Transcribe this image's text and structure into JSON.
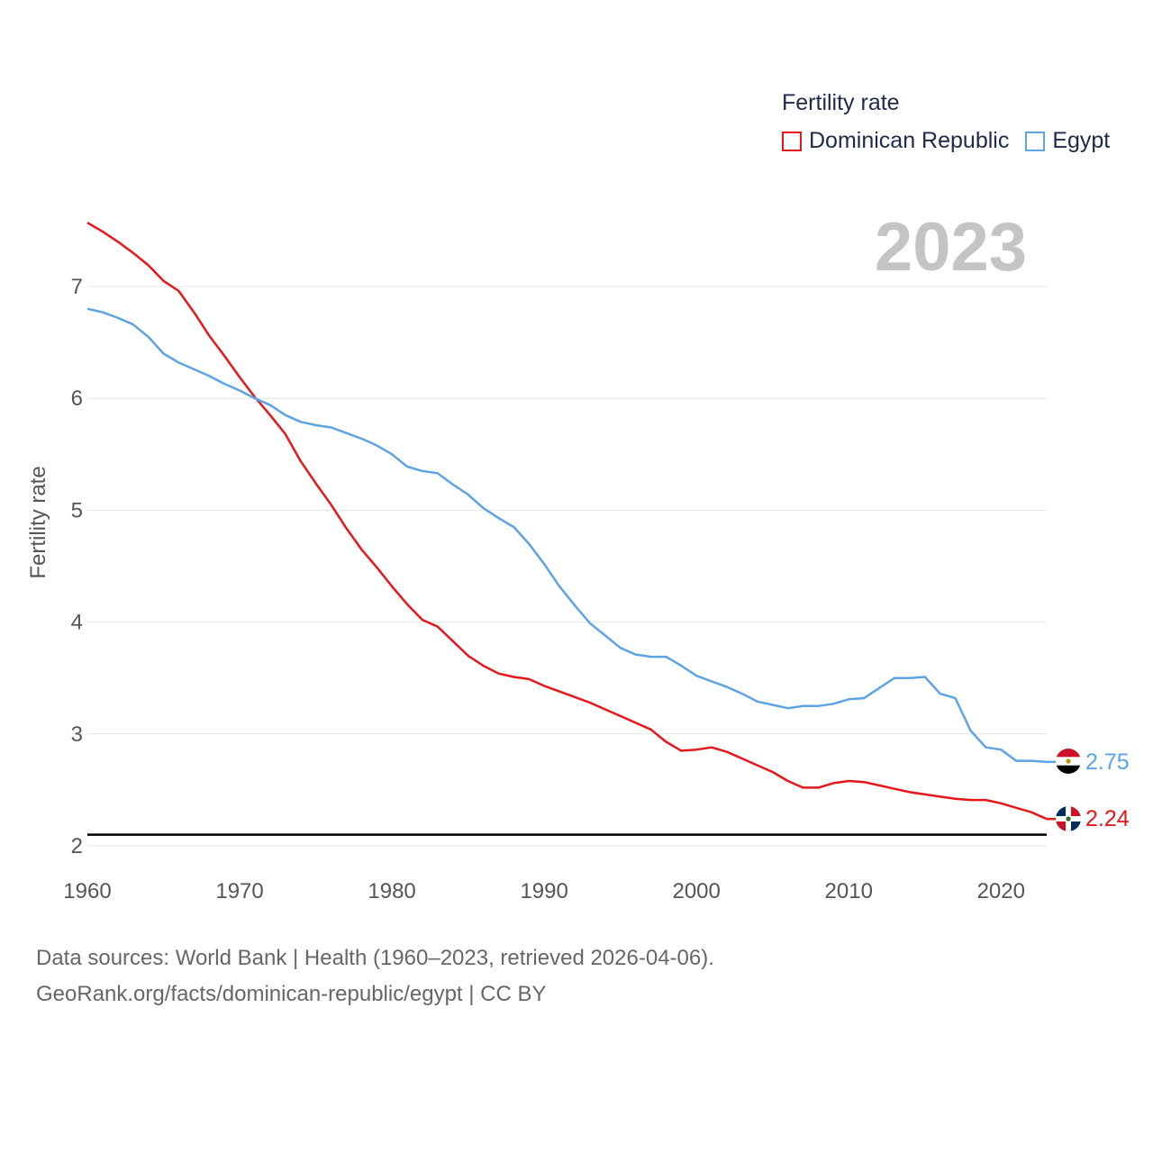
{
  "legend": {
    "title": "Fertility rate",
    "items": [
      {
        "label": "Dominican Republic",
        "color": "#e8161b"
      },
      {
        "label": "Egypt",
        "color": "#5ea3e3"
      }
    ]
  },
  "year_display": "2023",
  "source": {
    "line1": "Data sources: World Bank | Health (1960–2023, retrieved 2026-04-06).",
    "line2": "GeoRank.org/facts/dominican-republic/egypt | CC BY"
  },
  "chart_data": {
    "type": "line",
    "title": "Fertility rate",
    "xlabel": "",
    "ylabel": "Fertility rate",
    "xlim": [
      1960,
      2023
    ],
    "ylim": [
      2,
      7.6
    ],
    "x_ticks": [
      1960,
      1970,
      1980,
      1990,
      2000,
      2010,
      2020
    ],
    "y_ticks": [
      2,
      3,
      4,
      5,
      6,
      7
    ],
    "reference_line": {
      "y": 2.1,
      "color": "#000000"
    },
    "x": [
      1960,
      1961,
      1962,
      1963,
      1964,
      1965,
      1966,
      1967,
      1968,
      1969,
      1970,
      1971,
      1972,
      1973,
      1974,
      1975,
      1976,
      1977,
      1978,
      1979,
      1980,
      1981,
      1982,
      1983,
      1984,
      1985,
      1986,
      1987,
      1988,
      1989,
      1990,
      1991,
      1992,
      1993,
      1994,
      1995,
      1996,
      1997,
      1998,
      1999,
      2000,
      2001,
      2002,
      2003,
      2004,
      2005,
      2006,
      2007,
      2008,
      2009,
      2010,
      2011,
      2012,
      2013,
      2014,
      2015,
      2016,
      2017,
      2018,
      2019,
      2020,
      2021,
      2022,
      2023
    ],
    "series": [
      {
        "name": "Dominican Republic",
        "color": "#e8161b",
        "end_label": "2.24",
        "values": [
          7.57,
          7.49,
          7.4,
          7.3,
          7.19,
          7.05,
          6.96,
          6.77,
          6.56,
          6.38,
          6.19,
          6.01,
          5.85,
          5.68,
          5.44,
          5.24,
          5.05,
          4.84,
          4.65,
          4.49,
          4.32,
          4.16,
          4.02,
          3.96,
          3.83,
          3.7,
          3.61,
          3.54,
          3.51,
          3.49,
          3.43,
          3.38,
          3.33,
          3.28,
          3.22,
          3.16,
          3.1,
          3.04,
          2.93,
          2.85,
          2.86,
          2.88,
          2.84,
          2.78,
          2.72,
          2.66,
          2.58,
          2.52,
          2.52,
          2.56,
          2.58,
          2.57,
          2.54,
          2.51,
          2.48,
          2.46,
          2.44,
          2.42,
          2.41,
          2.41,
          2.38,
          2.34,
          2.3,
          2.24
        ]
      },
      {
        "name": "Egypt",
        "color": "#5ea3e3",
        "end_label": "2.75",
        "values": [
          6.8,
          6.77,
          6.72,
          6.66,
          6.55,
          6.4,
          6.32,
          6.26,
          6.2,
          6.13,
          6.07,
          6.0,
          5.94,
          5.85,
          5.79,
          5.76,
          5.74,
          5.69,
          5.64,
          5.58,
          5.5,
          5.39,
          5.35,
          5.33,
          5.23,
          5.14,
          5.02,
          4.93,
          4.85,
          4.7,
          4.52,
          4.32,
          4.15,
          3.99,
          3.88,
          3.77,
          3.71,
          3.69,
          3.69,
          3.61,
          3.52,
          3.47,
          3.42,
          3.36,
          3.29,
          3.26,
          3.23,
          3.25,
          3.25,
          3.27,
          3.31,
          3.32,
          3.41,
          3.5,
          3.5,
          3.51,
          3.36,
          3.32,
          3.03,
          2.88,
          2.86,
          2.76,
          2.76,
          2.75
        ]
      }
    ]
  }
}
